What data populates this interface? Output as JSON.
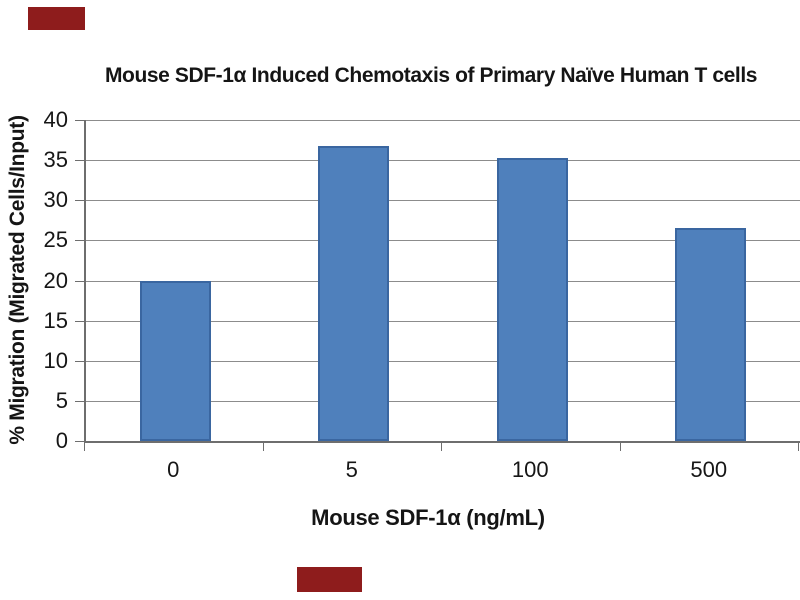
{
  "chart_data": {
    "type": "bar",
    "title": "Mouse SDF-1α Induced Chemotaxis of Primary Naïve Human T cells",
    "xlabel": "Mouse SDF-1α (ng/mL)",
    "ylabel": "% Migration (Migrated Cells/Input)",
    "categories": [
      "0",
      "5",
      "100",
      "500"
    ],
    "values": [
      20,
      36.8,
      35.3,
      26.6
    ],
    "ylim": [
      0,
      40
    ],
    "yticks": [
      0,
      5,
      10,
      15,
      20,
      25,
      30,
      35,
      40
    ],
    "grid": true,
    "legend": "none",
    "bar_color": "#4f80bc",
    "bar_border_color": "#3a66a0",
    "gridline_color": "#8c8c8c",
    "axis_color": "#6e6e6e"
  },
  "watermarks": {
    "color": "#8e1c1c",
    "count": 2
  }
}
